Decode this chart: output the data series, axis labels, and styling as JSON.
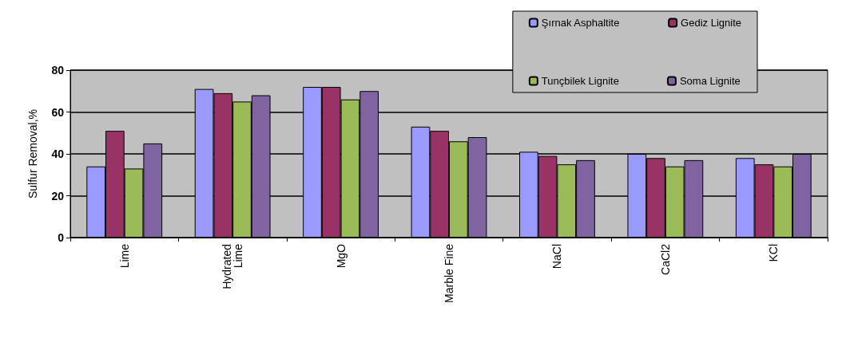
{
  "chart_data": {
    "type": "bar",
    "ylabel": "Sulfur Removal,%",
    "categories": [
      "Lime",
      "Hydrated\nLime",
      "MgO",
      "Marble Fine",
      "NaCl",
      "CaCl2",
      "KCl"
    ],
    "series": [
      {
        "name": "Şırnak Asphaltite",
        "color": "#9999ff",
        "values": [
          34,
          71,
          72,
          53,
          41,
          40,
          38
        ]
      },
      {
        "name": "Gediz Lignite",
        "color": "#993366",
        "values": [
          51,
          69,
          72,
          51,
          39,
          38,
          35
        ]
      },
      {
        "name": "Tunçbilek Lignite",
        "color": "#9bbb59",
        "values": [
          33,
          65,
          66,
          46,
          35,
          34,
          34
        ]
      },
      {
        "name": "Soma Lignite",
        "color": "#8064a2",
        "values": [
          45,
          68,
          70,
          48,
          37,
          37,
          40
        ]
      }
    ],
    "ylim": [
      0,
      80
    ],
    "yticks": [
      0,
      20,
      40,
      60,
      80
    ],
    "grid": "y",
    "legend": "top right"
  }
}
